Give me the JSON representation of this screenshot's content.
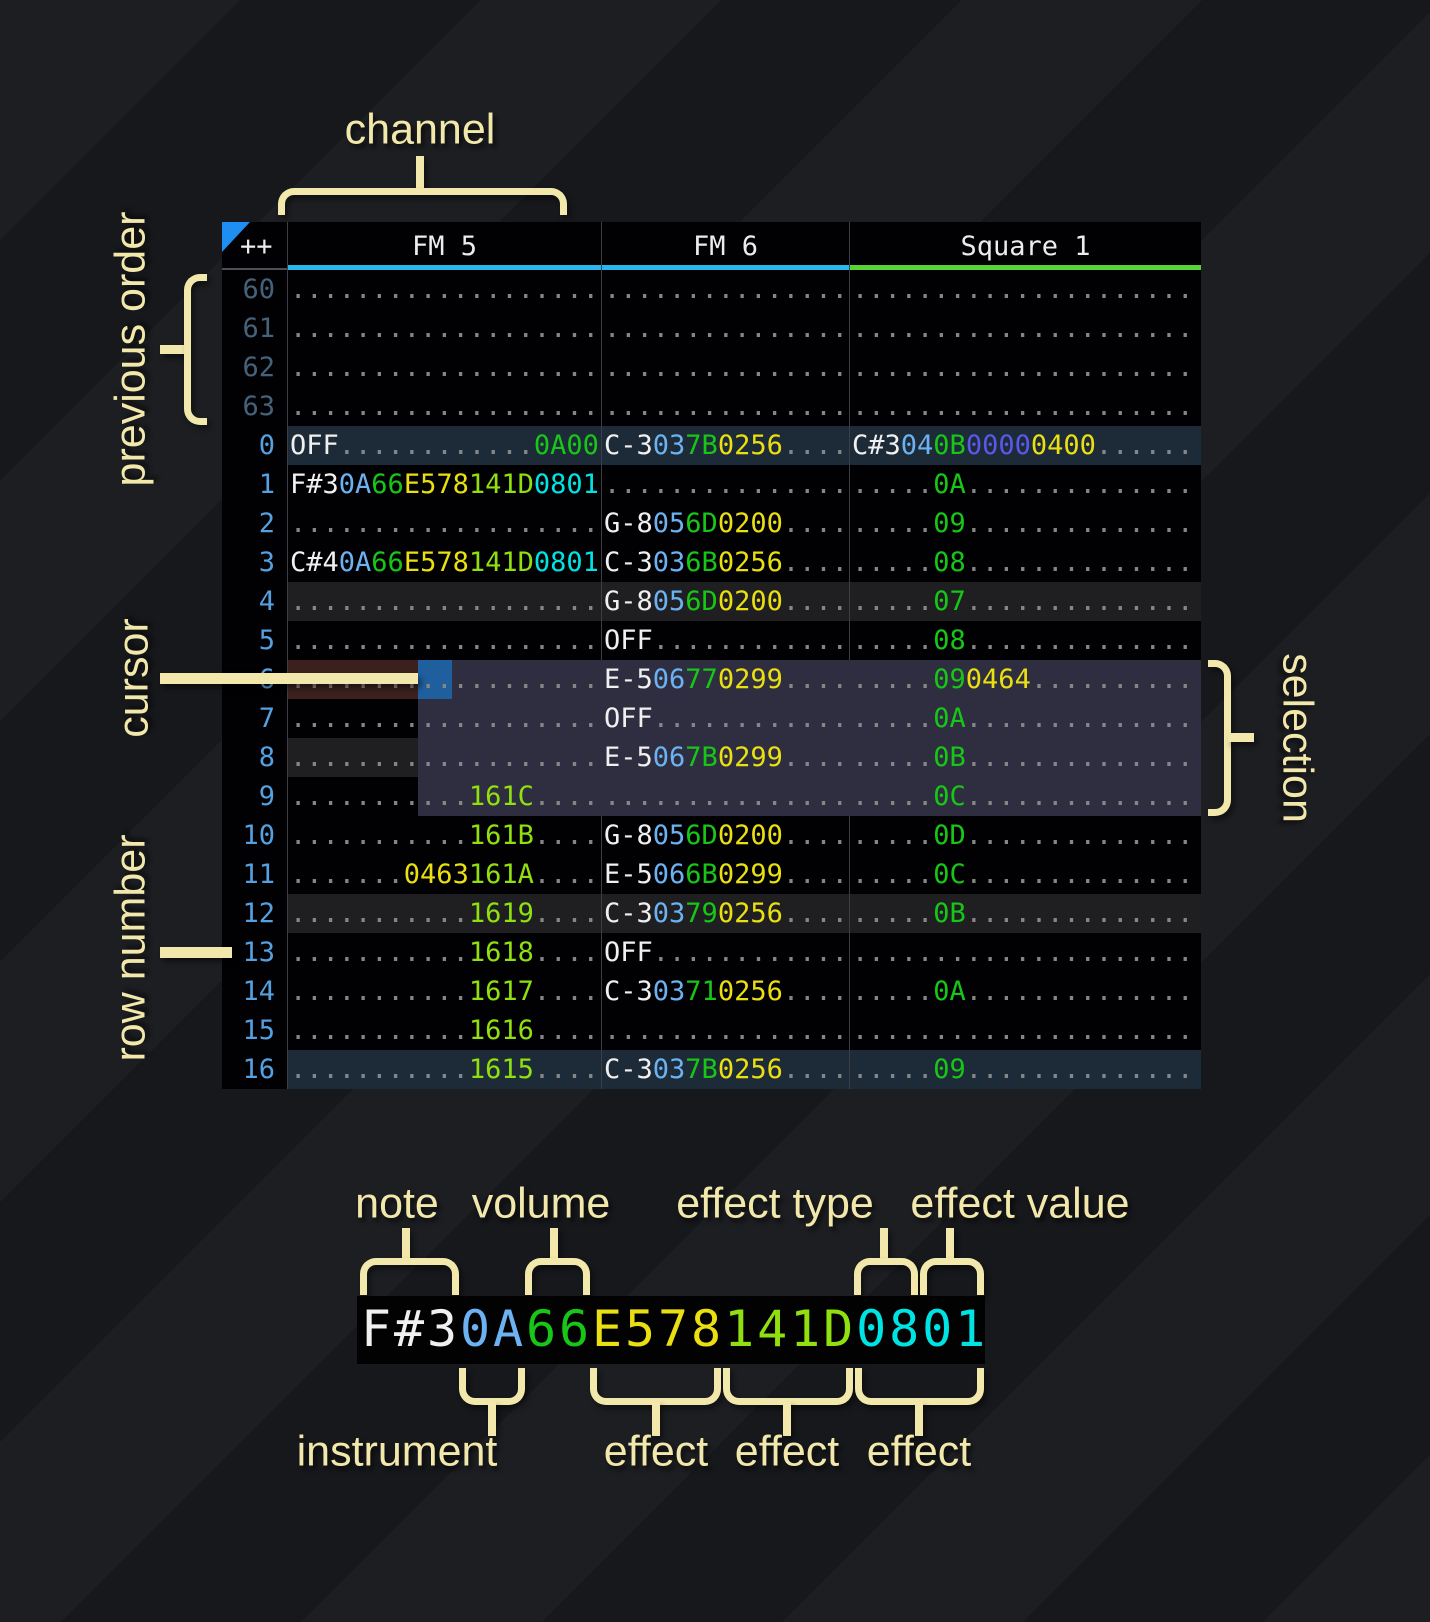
{
  "palette": {
    "label": "#f2e8ab",
    "note": "#f0f0f0",
    "ins": "#6cb2f2",
    "vol": "#17c617",
    "fxy": "#eadf10",
    "fxl": "#8fe00e",
    "fxc": "#00e3e3",
    "fxp": "#5b57e8",
    "fxg": "#17c617",
    "dim": "#868686",
    "rownum": "#54a0e0",
    "rowprev": "#45627b",
    "ufm": "#2ab7f0",
    "usq": "#57d336",
    "triangle": "#1f8ef2",
    "cursor": "#1f5f9e",
    "selection": "#2e2e40",
    "cursorrow": "#3b201e",
    "hlmajor": "#1d2a38",
    "hlminor": "#1f1f22",
    "headtext": "#ececec",
    "sep": "#3c3e44",
    "tablebg": "#010103"
  },
  "labels": {
    "channel": "channel",
    "previous_order": "previous order",
    "cursor": "cursor",
    "row_number": "row number",
    "selection": "selection",
    "note": "note",
    "volume": "volume",
    "effect_type": "effect type",
    "effect_value": "effect value",
    "instrument": "instrument",
    "effect_a": "effect",
    "effect_b": "effect",
    "effect_c": "effect"
  },
  "tracker": {
    "corner": "++",
    "channels": [
      {
        "name": "FM 5",
        "accent": "fm"
      },
      {
        "name": "FM 6",
        "accent": "fm"
      },
      {
        "name": "Square 1",
        "accent": "sq"
      }
    ],
    "rows": [
      {
        "n": "60",
        "cls": "prev",
        "cells": [
          [
            [
              "...................",
              "dim"
            ]
          ],
          [
            [
              "...............",
              "dim"
            ]
          ],
          [
            [
              ".....................",
              "dim"
            ]
          ]
        ]
      },
      {
        "n": "61",
        "cls": "prev",
        "cells": [
          [
            [
              "...................",
              "dim"
            ]
          ],
          [
            [
              "...............",
              "dim"
            ]
          ],
          [
            [
              ".....................",
              "dim"
            ]
          ]
        ]
      },
      {
        "n": "62",
        "cls": "prev",
        "cells": [
          [
            [
              "...................",
              "dim"
            ]
          ],
          [
            [
              "...............",
              "dim"
            ]
          ],
          [
            [
              ".....................",
              "dim"
            ]
          ]
        ]
      },
      {
        "n": "63",
        "cls": "prev",
        "cells": [
          [
            [
              "...................",
              "dim"
            ]
          ],
          [
            [
              "...............",
              "dim"
            ]
          ],
          [
            [
              ".....................",
              "dim"
            ]
          ]
        ]
      },
      {
        "n": "0",
        "cls": "hl16",
        "cells": [
          [
            [
              "OFF",
              "note"
            ],
            [
              "............",
              "dim"
            ],
            [
              "0A00",
              "fxg"
            ]
          ],
          [
            [
              "C-3",
              "note"
            ],
            [
              "03",
              "ins"
            ],
            [
              "7B",
              "vol"
            ],
            [
              "0256",
              "fxy"
            ],
            [
              "....",
              "dim"
            ]
          ],
          [
            [
              "C#3",
              "note"
            ],
            [
              "04",
              "ins"
            ],
            [
              "0B",
              "vol"
            ],
            [
              "0000",
              "fxp"
            ],
            [
              "0400",
              "fxy"
            ],
            [
              "......",
              "dim"
            ]
          ]
        ]
      },
      {
        "n": "1",
        "cls": "",
        "cells": [
          [
            [
              "F#3",
              "note"
            ],
            [
              "0A",
              "ins"
            ],
            [
              "66",
              "vol"
            ],
            [
              "E578",
              "fxy"
            ],
            [
              "141D",
              "fxl"
            ],
            [
              "0801",
              "fxc"
            ]
          ],
          [
            [
              "...............",
              "dim"
            ]
          ],
          [
            [
              ".....",
              "dim"
            ],
            [
              "0A",
              "vol"
            ],
            [
              "..............",
              "dim"
            ]
          ]
        ]
      },
      {
        "n": "2",
        "cls": "",
        "cells": [
          [
            [
              "...................",
              "dim"
            ]
          ],
          [
            [
              "G-8",
              "note"
            ],
            [
              "05",
              "ins"
            ],
            [
              "6D",
              "vol"
            ],
            [
              "0200",
              "fxy"
            ],
            [
              "....",
              "dim"
            ]
          ],
          [
            [
              ".....",
              "dim"
            ],
            [
              "09",
              "vol"
            ],
            [
              "..............",
              "dim"
            ]
          ]
        ]
      },
      {
        "n": "3",
        "cls": "",
        "cells": [
          [
            [
              "C#4",
              "note"
            ],
            [
              "0A",
              "ins"
            ],
            [
              "66",
              "vol"
            ],
            [
              "E578",
              "fxy"
            ],
            [
              "141D",
              "fxl"
            ],
            [
              "0801",
              "fxc"
            ]
          ],
          [
            [
              "C-3",
              "note"
            ],
            [
              "03",
              "ins"
            ],
            [
              "6B",
              "vol"
            ],
            [
              "0256",
              "fxy"
            ],
            [
              "....",
              "dim"
            ]
          ],
          [
            [
              ".....",
              "dim"
            ],
            [
              "08",
              "vol"
            ],
            [
              "..............",
              "dim"
            ]
          ]
        ]
      },
      {
        "n": "4",
        "cls": "hl4",
        "cells": [
          [
            [
              "...................",
              "dim"
            ]
          ],
          [
            [
              "G-8",
              "note"
            ],
            [
              "05",
              "ins"
            ],
            [
              "6D",
              "vol"
            ],
            [
              "0200",
              "fxy"
            ],
            [
              "....",
              "dim"
            ]
          ],
          [
            [
              ".....",
              "dim"
            ],
            [
              "07",
              "vol"
            ],
            [
              "..............",
              "dim"
            ]
          ]
        ]
      },
      {
        "n": "5",
        "cls": "",
        "cells": [
          [
            [
              "...................",
              "dim"
            ]
          ],
          [
            [
              "OFF",
              "note"
            ],
            [
              "............",
              "dim"
            ]
          ],
          [
            [
              ".....",
              "dim"
            ],
            [
              "08",
              "vol"
            ],
            [
              "..............",
              "dim"
            ]
          ]
        ]
      },
      {
        "n": "6",
        "cls": "",
        "cells": [
          [
            [
              "...................",
              "dim"
            ]
          ],
          [
            [
              "E-5",
              "note"
            ],
            [
              "06",
              "ins"
            ],
            [
              "77",
              "vol"
            ],
            [
              "0299",
              "fxy"
            ],
            [
              "....",
              "dim"
            ]
          ],
          [
            [
              ".....",
              "dim"
            ],
            [
              "09",
              "vol"
            ],
            [
              "0464",
              "fxy"
            ],
            [
              "..........",
              "dim"
            ]
          ]
        ]
      },
      {
        "n": "7",
        "cls": "",
        "cells": [
          [
            [
              "...................",
              "dim"
            ]
          ],
          [
            [
              "OFF",
              "note"
            ],
            [
              "............",
              "dim"
            ]
          ],
          [
            [
              ".....",
              "dim"
            ],
            [
              "0A",
              "vol"
            ],
            [
              "..............",
              "dim"
            ]
          ]
        ]
      },
      {
        "n": "8",
        "cls": "hl4",
        "cells": [
          [
            [
              "...................",
              "dim"
            ]
          ],
          [
            [
              "E-5",
              "note"
            ],
            [
              "06",
              "ins"
            ],
            [
              "7B",
              "vol"
            ],
            [
              "0299",
              "fxy"
            ],
            [
              "....",
              "dim"
            ]
          ],
          [
            [
              ".....",
              "dim"
            ],
            [
              "0B",
              "vol"
            ],
            [
              "..............",
              "dim"
            ]
          ]
        ]
      },
      {
        "n": "9",
        "cls": "",
        "cells": [
          [
            [
              "...........",
              "dim"
            ],
            [
              "161C",
              "fxl"
            ],
            [
              "....",
              "dim"
            ]
          ],
          [
            [
              "...............",
              "dim"
            ]
          ],
          [
            [
              ".....",
              "dim"
            ],
            [
              "0C",
              "vol"
            ],
            [
              "..............",
              "dim"
            ]
          ]
        ]
      },
      {
        "n": "10",
        "cls": "",
        "cells": [
          [
            [
              "...........",
              "dim"
            ],
            [
              "161B",
              "fxl"
            ],
            [
              "....",
              "dim"
            ]
          ],
          [
            [
              "G-8",
              "note"
            ],
            [
              "05",
              "ins"
            ],
            [
              "6D",
              "vol"
            ],
            [
              "0200",
              "fxy"
            ],
            [
              "....",
              "dim"
            ]
          ],
          [
            [
              ".....",
              "dim"
            ],
            [
              "0D",
              "vol"
            ],
            [
              "..............",
              "dim"
            ]
          ]
        ]
      },
      {
        "n": "11",
        "cls": "",
        "cells": [
          [
            [
              ".......",
              "dim"
            ],
            [
              "0463",
              "fxy"
            ],
            [
              "161A",
              "fxl"
            ],
            [
              "....",
              "dim"
            ]
          ],
          [
            [
              "E-5",
              "note"
            ],
            [
              "06",
              "ins"
            ],
            [
              "6B",
              "vol"
            ],
            [
              "0299",
              "fxy"
            ],
            [
              "....",
              "dim"
            ]
          ],
          [
            [
              ".....",
              "dim"
            ],
            [
              "0C",
              "vol"
            ],
            [
              "..............",
              "dim"
            ]
          ]
        ]
      },
      {
        "n": "12",
        "cls": "hl4",
        "cells": [
          [
            [
              "...........",
              "dim"
            ],
            [
              "1619",
              "fxl"
            ],
            [
              "....",
              "dim"
            ]
          ],
          [
            [
              "C-3",
              "note"
            ],
            [
              "03",
              "ins"
            ],
            [
              "79",
              "vol"
            ],
            [
              "0256",
              "fxy"
            ],
            [
              "....",
              "dim"
            ]
          ],
          [
            [
              ".....",
              "dim"
            ],
            [
              "0B",
              "vol"
            ],
            [
              "..............",
              "dim"
            ]
          ]
        ]
      },
      {
        "n": "13",
        "cls": "",
        "cells": [
          [
            [
              "...........",
              "dim"
            ],
            [
              "1618",
              "fxl"
            ],
            [
              "....",
              "dim"
            ]
          ],
          [
            [
              "OFF",
              "note"
            ],
            [
              "............",
              "dim"
            ]
          ],
          [
            [
              ".....................",
              "dim"
            ]
          ]
        ]
      },
      {
        "n": "14",
        "cls": "",
        "cells": [
          [
            [
              "...........",
              "dim"
            ],
            [
              "1617",
              "fxl"
            ],
            [
              "....",
              "dim"
            ]
          ],
          [
            [
              "C-3",
              "note"
            ],
            [
              "03",
              "ins"
            ],
            [
              "71",
              "vol"
            ],
            [
              "0256",
              "fxy"
            ],
            [
              "....",
              "dim"
            ]
          ],
          [
            [
              ".....",
              "dim"
            ],
            [
              "0A",
              "vol"
            ],
            [
              "..............",
              "dim"
            ]
          ]
        ]
      },
      {
        "n": "15",
        "cls": "",
        "cells": [
          [
            [
              "...........",
              "dim"
            ],
            [
              "1616",
              "fxl"
            ],
            [
              "....",
              "dim"
            ]
          ],
          [
            [
              "...............",
              "dim"
            ]
          ],
          [
            [
              ".....................",
              "dim"
            ]
          ]
        ]
      },
      {
        "n": "16",
        "cls": "hl16",
        "cells": [
          [
            [
              "...........",
              "dim"
            ],
            [
              "1615",
              "fxl"
            ],
            [
              "....",
              "dim"
            ]
          ],
          [
            [
              "C-3",
              "note"
            ],
            [
              "03",
              "ins"
            ],
            [
              "7B",
              "vol"
            ],
            [
              "0256",
              "fxy"
            ],
            [
              "....",
              "dim"
            ]
          ],
          [
            [
              ".....",
              "dim"
            ],
            [
              "09",
              "vol"
            ],
            [
              "..............",
              "dim"
            ]
          ]
        ]
      }
    ]
  },
  "breakdown": {
    "segments": [
      [
        "F#3",
        "note"
      ],
      [
        "0A",
        "ins"
      ],
      [
        "66",
        "vol"
      ],
      [
        "E578",
        "fxy"
      ],
      [
        "141D",
        "fxl"
      ],
      [
        "0801",
        "fxc"
      ]
    ]
  }
}
